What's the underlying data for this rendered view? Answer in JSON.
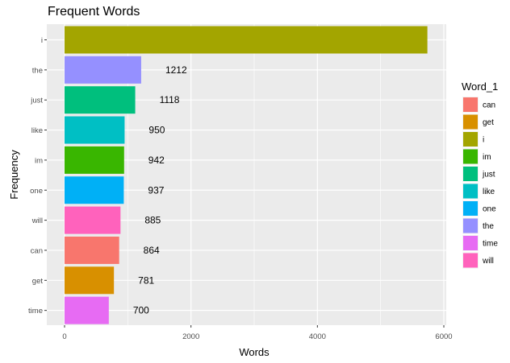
{
  "chart_data": {
    "type": "bar",
    "orientation": "horizontal",
    "title": "Frequent Words",
    "xlabel": "Words",
    "ylabel": "Frequency",
    "categories": [
      "i",
      "the",
      "just",
      "like",
      "im",
      "one",
      "will",
      "can",
      "get",
      "time"
    ],
    "values": [
      5740,
      1212,
      1118,
      950,
      942,
      937,
      885,
      864,
      781,
      700
    ],
    "data_labels": [
      "",
      "1212",
      "1118",
      "950",
      "942",
      "937",
      "885",
      "864",
      "781",
      "700"
    ],
    "xlim": [
      0,
      6000
    ],
    "x_ticks": [
      0,
      2000,
      4000,
      6000
    ],
    "grid": true,
    "legend": {
      "title": "Word_1",
      "placement": "right",
      "entries": [
        "can",
        "get",
        "i",
        "im",
        "just",
        "like",
        "one",
        "the",
        "time",
        "will"
      ]
    },
    "colors": {
      "can": "#F8766D",
      "get": "#D89000",
      "i": "#A3A500",
      "im": "#39B600",
      "just": "#00BF7D",
      "like": "#00BFC4",
      "one": "#00B0F6",
      "the": "#9590FF",
      "time": "#E76BF3",
      "will": "#FF62BC"
    },
    "panel_background": "#EBEBEB"
  }
}
